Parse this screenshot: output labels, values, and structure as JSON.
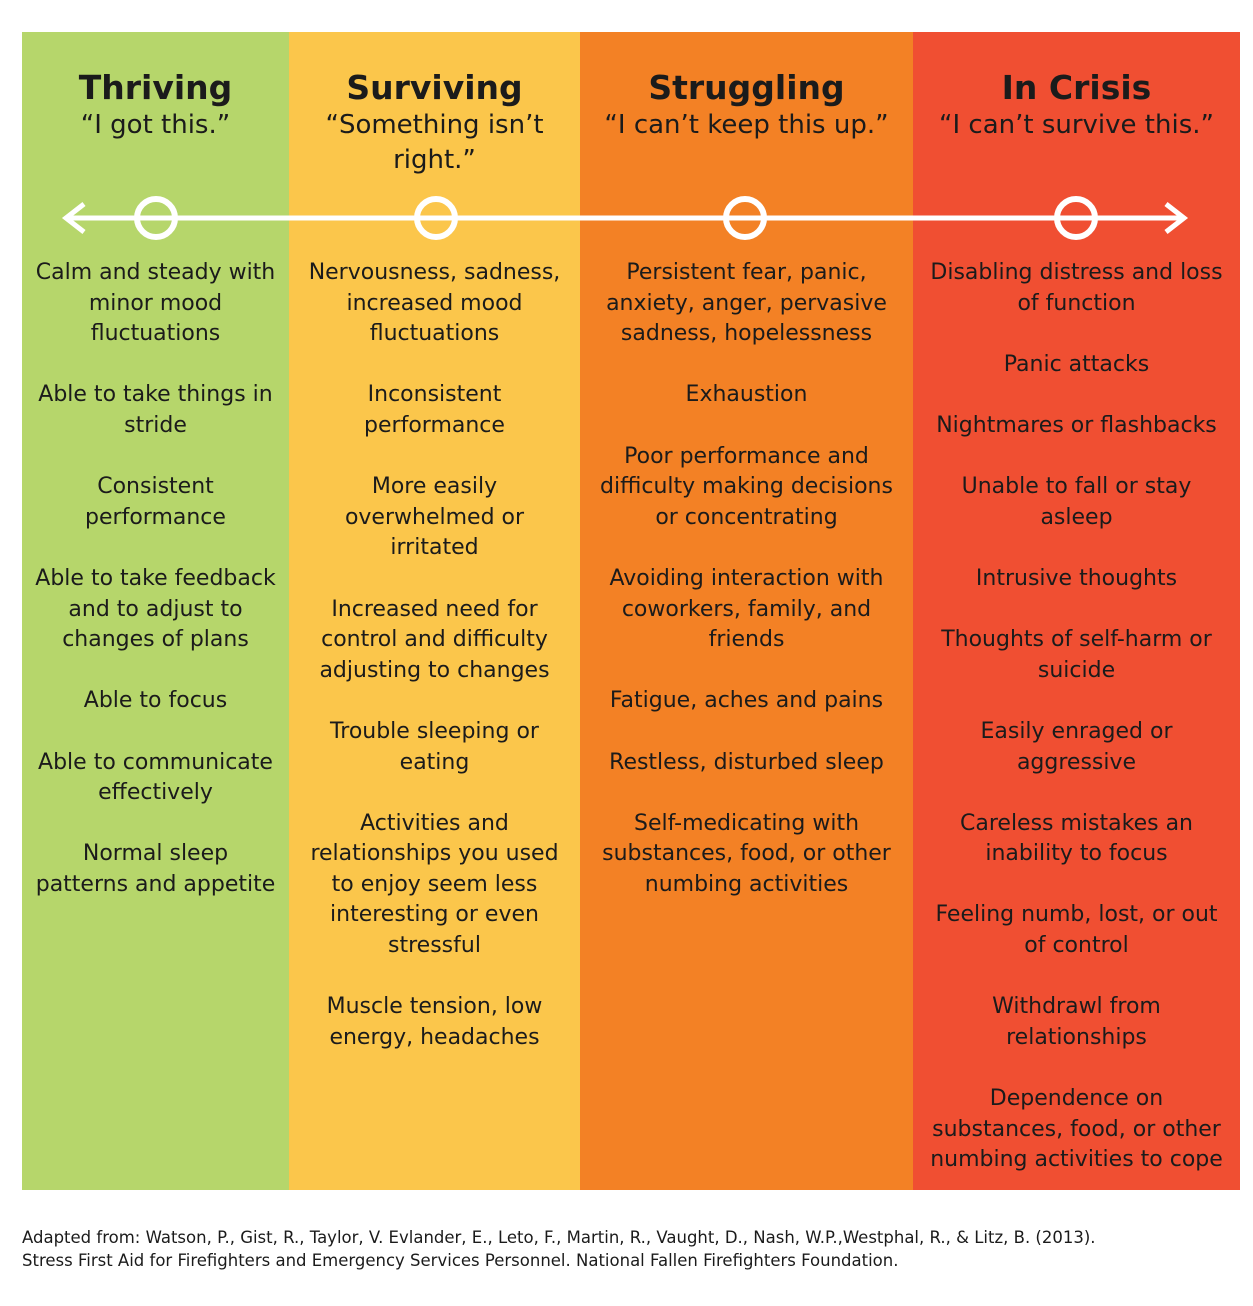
{
  "columns": [
    {
      "title": "Thriving",
      "quote": "“I got this.”",
      "items": [
        "Calm and steady with minor mood fluctuations",
        "Able to take things in stride",
        "Consistent performance",
        "Able to take feedback and to adjust to changes of plans",
        "Able to focus",
        "Able to communicate effectively",
        "Normal sleep patterns and appetite"
      ]
    },
    {
      "title": "Surviving",
      "quote": "“Something isn’t right.”",
      "items": [
        "Nervousness, sadness, increased mood fluctuations",
        "Inconsistent performance",
        "More easily overwhelmed or irritated",
        "Increased need for control and difficulty adjusting to changes",
        "Trouble sleeping or eating",
        "Activities and relationships you used to enjoy seem less interesting or even stressful",
        "Muscle tension, low energy, headaches"
      ]
    },
    {
      "title": "Struggling",
      "quote": "“I can’t keep this up.”",
      "items": [
        "Persistent fear, panic, anxiety, anger, pervasive sadness, hopelessness",
        "Exhaustion",
        "Poor performance and difficulty making decisions or concentrating",
        "Avoiding interaction with coworkers, family, and friends",
        "Fatigue, aches and pains",
        "Restless, disturbed sleep",
        "Self-medicating with substances, food, or other numbing activities"
      ]
    },
    {
      "title": "In Crisis",
      "quote": "“I can’t survive this.”",
      "items": [
        "Disabling distress and loss of function",
        "Panic attacks",
        "Nightmares or flashbacks",
        "Unable to fall or stay asleep",
        "Intrusive thoughts",
        "Thoughts of self-harm or suicide",
        "Easily enraged or aggressive",
        "Careless mistakes an inability to focus",
        "Feeling numb, lost, or out of control",
        "Withdrawl from relationships",
        "Dependence on substances, food, or other numbing activities to cope"
      ]
    }
  ],
  "footer": [
    "Adapted from: Watson, P., Gist, R., Taylor, V. Evlander, E., Leto, F., Martin, R., Vaught, D., Nash, W.P.,Westphal, R., & Litz, B. (2013).",
    "Stress First Aid for Firefighters and Emergency Services Personnel. National Fallen Firefighters Foundation."
  ]
}
